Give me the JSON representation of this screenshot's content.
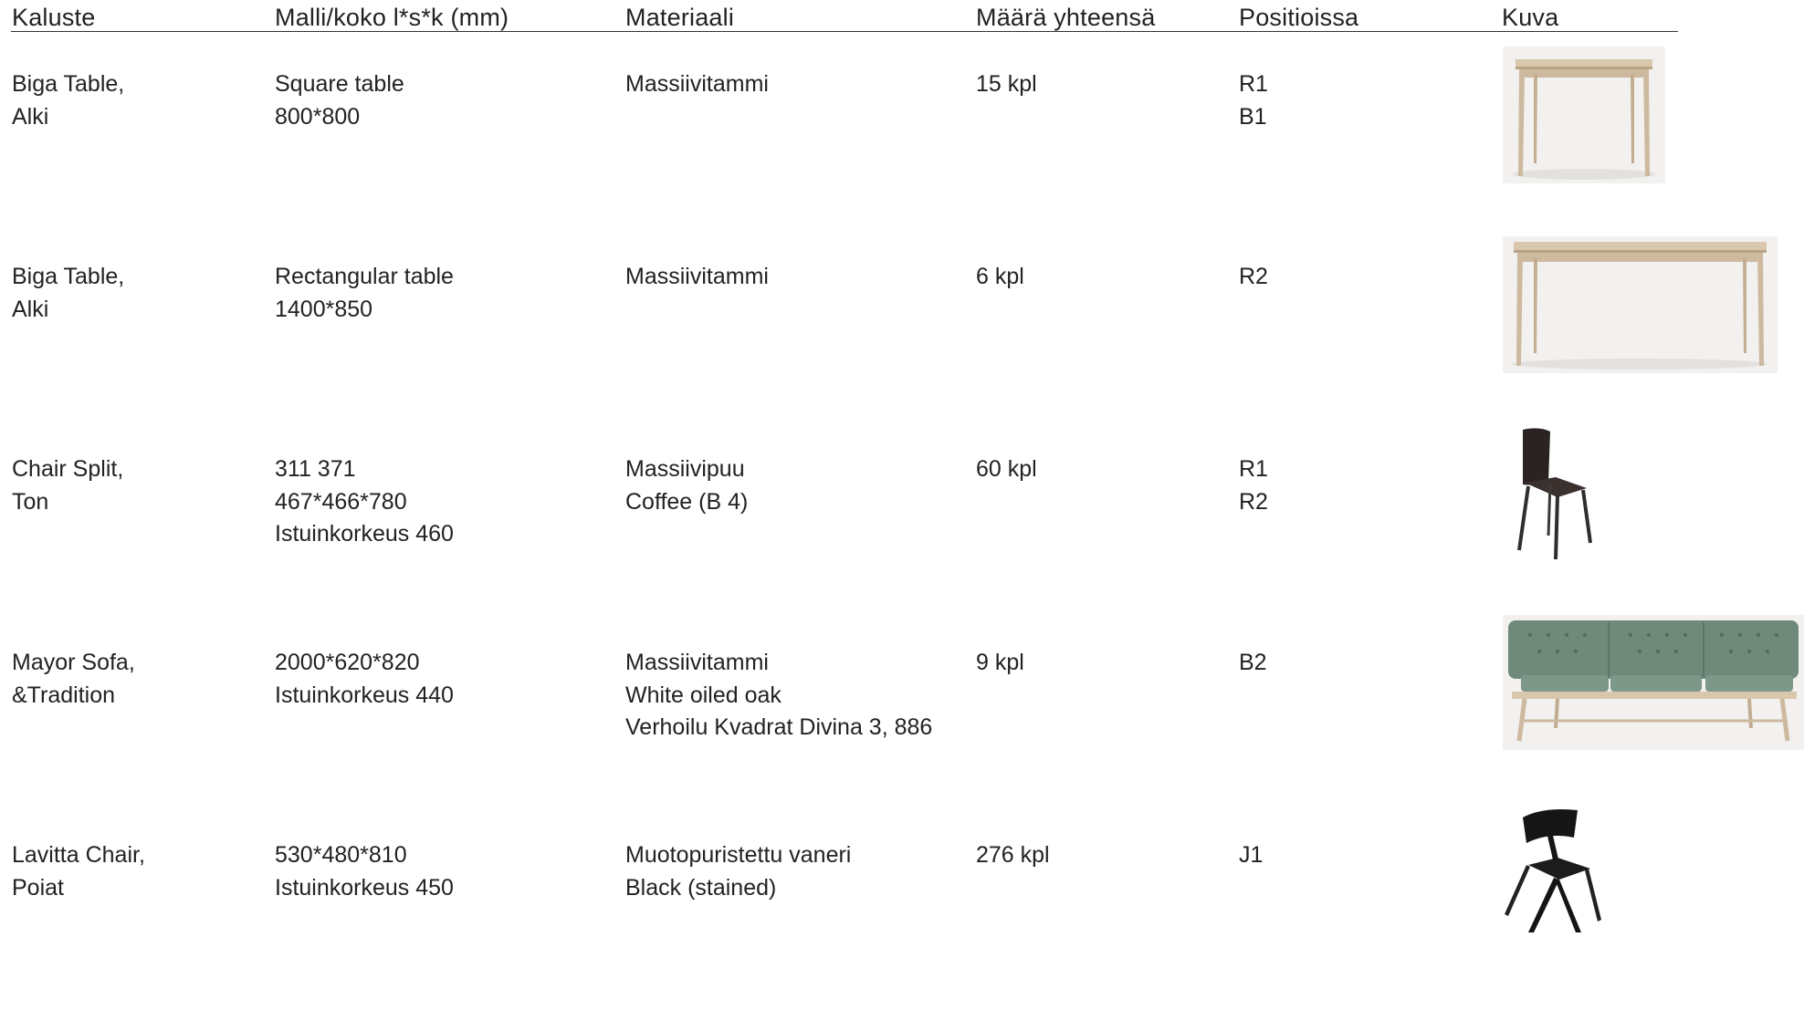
{
  "headers": {
    "item": "Kaluste",
    "model": "Malli/koko l*s*k (mm)",
    "material": "Materiaali",
    "quantity": "Määrä yhteensä",
    "positions": "Positioissa",
    "image": "Kuva"
  },
  "rows": [
    {
      "item": [
        "Biga Table,",
        "Alki"
      ],
      "model": [
        "Square table",
        "800*800"
      ],
      "material": [
        "Massiivitammi"
      ],
      "quantity": "15 kpl",
      "positions": [
        "R1",
        "B1"
      ],
      "image_icon": "square-oak-table-photo"
    },
    {
      "item": [
        "Biga Table,",
        "Alki"
      ],
      "model": [
        "Rectangular table",
        "1400*850"
      ],
      "material": [
        "Massiivitammi"
      ],
      "quantity": "6 kpl",
      "positions": [
        "R2"
      ],
      "image_icon": "rectangular-oak-table-photo"
    },
    {
      "item": [
        "Chair Split,",
        "Ton"
      ],
      "model": [
        "311 371",
        "467*466*780",
        "Istuinkorkeus 460"
      ],
      "material": [
        "Massiivipuu",
        "Coffee (B 4)"
      ],
      "quantity": "60 kpl",
      "positions": [
        "R1",
        "R2"
      ],
      "image_icon": "dark-wood-chair-photo"
    },
    {
      "item": [
        "Mayor Sofa,",
        "&Tradition"
      ],
      "model": [
        "2000*620*820",
        "Istuinkorkeus 440"
      ],
      "material": [
        "Massiivitammi",
        "White oiled oak",
        "Verhoilu Kvadrat Divina 3, 886"
      ],
      "quantity": "9 kpl",
      "positions": [
        "B2"
      ],
      "image_icon": "green-sofa-photo"
    },
    {
      "item": [
        "Lavitta Chair,",
        "Poiat"
      ],
      "model": [
        "530*480*810",
        "Istuinkorkeus 450"
      ],
      "material": [
        "Muotopuristettu vaneri",
        "Black (stained)"
      ],
      "quantity": "276 kpl",
      "positions": [
        "J1"
      ],
      "image_icon": "black-plywood-chair-photo"
    }
  ],
  "colors": {
    "oak": "#d9c7ad",
    "oak_dark": "#b9a286",
    "sofa_green": "#6f8a7a",
    "chair_dark": "#2a2322",
    "black": "#151515"
  }
}
